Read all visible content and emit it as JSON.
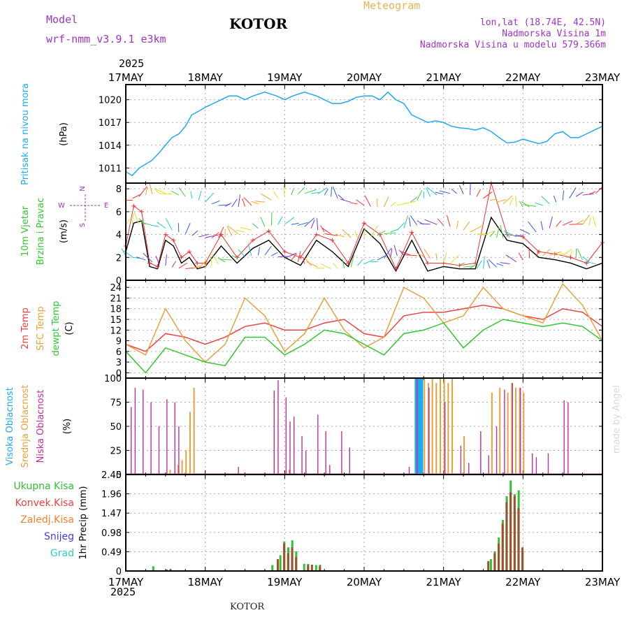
{
  "header": {
    "model_label": "Model",
    "model_name": "wrf-nmm_v3.9.1  e3km",
    "station": "KOTOR",
    "meteogram": "Meteogram",
    "lonlat": "lon,lat (18.74E, 42.5N)",
    "elevation": "Nadmorska Visina 1m",
    "model_elevation": "Nadmorska Visina u modelu 579.366m",
    "year_top": "2025",
    "year_bottom": "2025",
    "footer_station": "KOTOR",
    "credit": "made by Angel"
  },
  "chart_data": [
    {
      "type": "line",
      "title": "Pritisak na nivou mora",
      "ylabel": "(hPa)",
      "x_ticks": [
        "17MAY",
        "18MAY",
        "19MAY",
        "20MAY",
        "21MAY",
        "22MAY",
        "23MAY"
      ],
      "ylim": [
        1009,
        1022
      ],
      "yticks": [
        1011,
        1014,
        1017,
        1020
      ],
      "series": [
        {
          "name": "Pritisak",
          "color": "#1eaaee",
          "x": [
            0,
            0.08,
            0.17,
            0.25,
            0.33,
            0.42,
            0.5,
            0.58,
            0.67,
            0.75,
            0.83,
            0.92,
            1.0,
            1.1,
            1.2,
            1.3,
            1.4,
            1.5,
            1.6,
            1.75,
            1.9,
            2.0,
            2.1,
            2.25,
            2.4,
            2.5,
            2.6,
            2.7,
            2.8,
            2.9,
            3.0,
            3.1,
            3.2,
            3.3,
            3.4,
            3.5,
            3.6,
            3.7,
            3.8,
            3.9,
            4.0,
            4.1,
            4.2,
            4.3,
            4.4,
            4.5,
            4.6,
            4.7,
            4.8,
            4.9,
            5.0,
            5.1,
            5.2,
            5.3,
            5.4,
            5.5,
            5.6,
            5.7,
            5.8,
            5.9,
            6.0
          ],
          "values": [
            1010.5,
            1010,
            1011,
            1011.5,
            1012,
            1013,
            1014,
            1015,
            1015.5,
            1016.5,
            1018,
            1018.5,
            1019,
            1019.5,
            1020,
            1020.5,
            1020.5,
            1020,
            1020.5,
            1021,
            1020.5,
            1020,
            1020.5,
            1021,
            1020.5,
            1020,
            1019.5,
            1019.5,
            1019.8,
            1020.3,
            1020.5,
            1020.5,
            1020,
            1021,
            1020,
            1019.5,
            1018,
            1017.5,
            1017,
            1017.2,
            1017,
            1016.5,
            1016.3,
            1016.2,
            1016,
            1016.3,
            1015.8,
            1015,
            1014.3,
            1014.4,
            1014.8,
            1014.5,
            1014.2,
            1014.5,
            1015.5,
            1015.8,
            1015,
            1015,
            1015.5,
            1016,
            1016.5
          ]
        }
      ]
    },
    {
      "type": "line",
      "title": "10m Vjetar Brzina i Pravac",
      "ylabel": "(m/s)",
      "compass": [
        "N",
        "E",
        "S",
        "W"
      ],
      "ylim": [
        0,
        8.5
      ],
      "yticks": [
        0,
        2,
        4,
        6,
        8
      ],
      "series": [
        {
          "name": "Brzina",
          "color": "#000000",
          "x": [
            0,
            0.1,
            0.2,
            0.3,
            0.4,
            0.5,
            0.6,
            0.7,
            0.8,
            0.9,
            1.0,
            1.2,
            1.4,
            1.6,
            1.8,
            2.0,
            2.2,
            2.4,
            2.6,
            2.8,
            3.0,
            3.2,
            3.4,
            3.6,
            3.8,
            4.0,
            4.2,
            4.4,
            4.6,
            4.8,
            5.0,
            5.2,
            5.4,
            5.6,
            5.8,
            6.0
          ],
          "values": [
            2.5,
            5.0,
            5.2,
            1.2,
            1.0,
            3.5,
            3.0,
            1.5,
            2.0,
            1.0,
            1.2,
            3.0,
            1.5,
            2.8,
            3.5,
            2.0,
            1.3,
            3.5,
            2.5,
            1.2,
            4.5,
            3.2,
            0.8,
            3.5,
            0.8,
            1.2,
            1.0,
            1.0,
            5.5,
            3.5,
            3.2,
            2.0,
            1.8,
            1.5,
            1.0,
            1.5
          ]
        },
        {
          "name": "Udari",
          "color": "#ee3030",
          "x": [
            0,
            0.1,
            0.2,
            0.3,
            0.4,
            0.5,
            0.6,
            0.7,
            0.8,
            0.9,
            1.0,
            1.2,
            1.4,
            1.6,
            1.8,
            2.0,
            2.2,
            2.4,
            2.6,
            2.8,
            3.0,
            3.2,
            3.4,
            3.6,
            3.8,
            4.0,
            4.2,
            4.4,
            4.6,
            4.8,
            5.0,
            5.2,
            5.4,
            5.6,
            5.8,
            6.0
          ],
          "values": [
            3.0,
            6.5,
            6.0,
            1.5,
            1.2,
            4.0,
            3.5,
            2.0,
            2.5,
            1.5,
            1.5,
            4.0,
            2.0,
            3.5,
            4.3,
            2.5,
            2.0,
            4.0,
            3.5,
            1.5,
            5.0,
            4.0,
            1.0,
            4.2,
            1.5,
            1.5,
            1.3,
            1.5,
            8.5,
            4.0,
            3.8,
            2.5,
            2.3,
            2.0,
            1.5,
            3.3
          ]
        }
      ]
    },
    {
      "type": "line",
      "title": "2m Temp / SFC Temp / dewpt Temp",
      "ylabel": "(C)",
      "ylim": [
        -1.5,
        26
      ],
      "yticks": [
        0,
        3,
        6,
        9,
        12,
        15,
        18,
        21,
        24
      ],
      "series": [
        {
          "name": "2m Temp",
          "color": "#ee4040",
          "x": [
            0,
            0.25,
            0.5,
            0.75,
            1.0,
            1.25,
            1.5,
            1.75,
            2.0,
            2.25,
            2.5,
            2.75,
            3.0,
            3.25,
            3.5,
            3.75,
            4.0,
            4.25,
            4.5,
            4.75,
            5.0,
            5.25,
            5.5,
            5.75,
            6.0
          ],
          "values": [
            8,
            6,
            11,
            10,
            8,
            10,
            13,
            14,
            12,
            12,
            14,
            15,
            11,
            10,
            16,
            17,
            17,
            18,
            19,
            18,
            16,
            15,
            18,
            17,
            13
          ]
        },
        {
          "name": "SFC Temp",
          "color": "#e6a23c",
          "x": [
            0,
            0.25,
            0.5,
            0.75,
            1.0,
            1.25,
            1.5,
            1.75,
            2.0,
            2.25,
            2.5,
            2.75,
            3.0,
            3.25,
            3.5,
            3.75,
            4.0,
            4.25,
            4.5,
            4.75,
            5.0,
            5.25,
            5.5,
            5.75,
            6.0
          ],
          "values": [
            8,
            5,
            18,
            9,
            3,
            8,
            21,
            16,
            6,
            11,
            21,
            12,
            7,
            10,
            24,
            21,
            14,
            16,
            24,
            18,
            16,
            14,
            25,
            19,
            9
          ]
        },
        {
          "name": "dewpt Temp",
          "color": "#30c830",
          "x": [
            0,
            0.25,
            0.5,
            0.75,
            1.0,
            1.25,
            1.5,
            1.75,
            2.0,
            2.25,
            2.5,
            2.75,
            3.0,
            3.25,
            3.5,
            3.75,
            4.0,
            4.25,
            4.5,
            4.75,
            5.0,
            5.25,
            5.5,
            5.75,
            6.0
          ],
          "values": [
            6,
            0,
            7,
            5,
            3,
            2,
            10,
            10,
            5,
            8,
            12,
            11,
            8,
            5,
            11,
            12,
            14,
            7,
            12,
            15,
            14,
            13,
            14,
            13,
            9
          ]
        }
      ]
    },
    {
      "type": "bar",
      "title": "Visoka / Srednja / Niska Oblacnost",
      "ylabel": "(%)",
      "ylim": [
        0,
        100
      ],
      "yticks": [
        0,
        25,
        50,
        75,
        100
      ],
      "series": [
        {
          "name": "Visoka Oblacnost",
          "color": "#1eaaee",
          "x": [
            3.65,
            3.67,
            3.69,
            3.71,
            3.73
          ],
          "values": [
            100,
            100,
            100,
            100,
            100
          ]
        },
        {
          "name": "Srednja Oblacnost",
          "color": "#e6a23c",
          "x": [
            0.55,
            0.65,
            0.7,
            0.75,
            0.8,
            0.85,
            2.05,
            3.75,
            3.8,
            3.85,
            3.9,
            3.95,
            4.0,
            4.05,
            4.1,
            4.25,
            4.6,
            4.7,
            4.8,
            4.85,
            4.9,
            4.95,
            5.0
          ],
          "values": [
            5,
            10,
            15,
            25,
            65,
            90,
            5,
            100,
            95,
            100,
            95,
            100,
            100,
            95,
            100,
            40,
            85,
            90,
            85,
            95,
            90,
            90,
            85
          ]
        },
        {
          "name": "Niska Oblacnost",
          "color": "#c0309a",
          "x": [
            0.05,
            0.1,
            0.2,
            0.3,
            0.4,
            0.5,
            0.6,
            0.65,
            1.4,
            1.85,
            1.9,
            2.0,
            2.05,
            2.1,
            2.2,
            2.25,
            2.4,
            2.5,
            2.55,
            2.7,
            2.8,
            3.55,
            3.65,
            3.8,
            4.0,
            4.2,
            4.3,
            4.45,
            4.55,
            4.65,
            4.75,
            4.85,
            4.95,
            5.1,
            5.15,
            5.3,
            5.5,
            5.55
          ],
          "values": [
            70,
            90,
            88,
            75,
            50,
            78,
            75,
            50,
            8,
            87,
            98,
            80,
            55,
            60,
            40,
            25,
            62,
            45,
            10,
            45,
            28,
            8,
            100,
            90,
            75,
            30,
            12,
            45,
            20,
            50,
            88,
            95,
            90,
            22,
            18,
            22,
            77,
            75
          ]
        }
      ]
    },
    {
      "type": "bar",
      "title": "1hr Precip",
      "ylabel": "(mm)",
      "ylim": [
        0,
        2.45
      ],
      "yticks": [
        0,
        0.49,
        0.98,
        1.47,
        1.96,
        2.45
      ],
      "legend": [
        "Ukupna Kisa",
        "Konvek.Kisa",
        "Zaledj.Kisa",
        "Snijeg",
        "Grad"
      ],
      "series": [
        {
          "name": "Ukupna Kisa",
          "color": "#30c030",
          "x": [
            0.35,
            1.85,
            1.95,
            2.0,
            2.05,
            2.1,
            2.15,
            2.25,
            2.3,
            2.4,
            2.45,
            4.6,
            4.65,
            4.7,
            4.75,
            4.8,
            4.85,
            4.9,
            4.95,
            5.0
          ],
          "values": [
            0.12,
            0.15,
            0.4,
            0.75,
            0.6,
            0.78,
            0.5,
            0.18,
            0.18,
            0.15,
            0.16,
            0.3,
            0.5,
            0.85,
            1.3,
            1.9,
            2.3,
            1.95,
            2.05,
            0.5
          ]
        },
        {
          "name": "Konvek.Kisa",
          "color": "#a05030",
          "x": [
            0.5,
            0.55,
            1.9,
            1.98,
            2.03,
            2.08,
            2.13,
            2.28,
            2.33,
            2.43,
            4.55,
            4.63,
            4.68,
            4.73,
            4.78,
            4.83,
            4.88,
            4.93,
            4.98
          ],
          "values": [
            0.04,
            0.05,
            0.3,
            0.7,
            0.45,
            0.6,
            0.35,
            0.15,
            0.16,
            0.12,
            0.25,
            0.45,
            0.7,
            1.2,
            1.75,
            2.0,
            1.9,
            1.6,
            0.6
          ]
        }
      ]
    }
  ],
  "panel_labels": {
    "p1": [
      {
        "text": "Pritisak na nivou mora",
        "color": "#1eaaee"
      }
    ],
    "p2": [
      {
        "text": "10m Vjetar",
        "color": "#30c830"
      },
      {
        "text": "Brzina i Pravac",
        "color": "#30c830"
      }
    ],
    "p3": [
      {
        "text": "2m Temp",
        "color": "#ee4040"
      },
      {
        "text": "SFC Temp",
        "color": "#e6a23c"
      },
      {
        "text": "dewpt Temp",
        "color": "#30c830"
      }
    ],
    "p4": [
      {
        "text": "Visoka Oblacnost",
        "color": "#1eaaee"
      },
      {
        "text": "Srednja Oblacnost",
        "color": "#e6a23c"
      },
      {
        "text": "Niska Oblacnost",
        "color": "#c0309a"
      }
    ],
    "p5_legend": [
      {
        "text": "Ukupna Kisa",
        "color": "#30c030"
      },
      {
        "text": "Konvek.Kisa",
        "color": "#ee4040"
      },
      {
        "text": "Zaledj.Kisa",
        "color": "#f08030"
      },
      {
        "text": "Snijeg",
        "color": "#4040dd"
      },
      {
        "text": "Grad",
        "color": "#30c8c8"
      }
    ]
  }
}
